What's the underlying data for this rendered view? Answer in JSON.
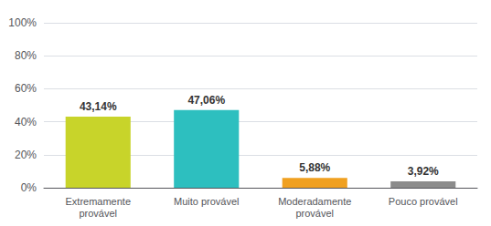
{
  "chart_data": {
    "type": "bar",
    "categories": [
      "Extremamente\nprovável",
      "Muito provável",
      "Moderadamente\nprovável",
      "Pouco provável"
    ],
    "values": [
      43.14,
      47.06,
      5.88,
      3.92
    ],
    "value_labels": [
      "43,14%",
      "47,06%",
      "5,88%",
      "3,92%"
    ],
    "colors": [
      "#c8d42a",
      "#2dbfbf",
      "#f0a020",
      "#8c8c8c"
    ],
    "ylim": [
      0,
      100
    ],
    "yticks": [
      {
        "value": 0,
        "label": "0%"
      },
      {
        "value": 20,
        "label": "20%"
      },
      {
        "value": 40,
        "label": "40%"
      },
      {
        "value": 60,
        "label": "60%"
      },
      {
        "value": 80,
        "label": "80%"
      },
      {
        "value": 100,
        "label": "100%"
      }
    ],
    "grid": true,
    "data_labels": true
  }
}
